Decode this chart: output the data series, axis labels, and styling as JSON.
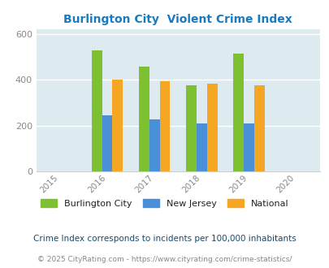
{
  "title": "Burlington City  Violent Crime Index",
  "years": [
    2015,
    2016,
    2017,
    2018,
    2019,
    2020
  ],
  "bar_years": [
    2016,
    2017,
    2018,
    2019
  ],
  "burlington": [
    530,
    458,
    378,
    515
  ],
  "new_jersey": [
    245,
    228,
    210,
    210
  ],
  "national": [
    400,
    395,
    383,
    378
  ],
  "colors": {
    "burlington": "#7dc030",
    "new_jersey": "#4a90d9",
    "national": "#f5a623"
  },
  "ylim": [
    0,
    620
  ],
  "yticks": [
    0,
    200,
    400,
    600
  ],
  "background_color": "#ddeaf0",
  "title_color": "#1a7abf",
  "legend_labels": [
    "Burlington City",
    "New Jersey",
    "National"
  ],
  "footnote1": "Crime Index corresponds to incidents per 100,000 inhabitants",
  "footnote2": "© 2025 CityRating.com - https://www.cityrating.com/crime-statistics/",
  "bar_width": 0.22
}
